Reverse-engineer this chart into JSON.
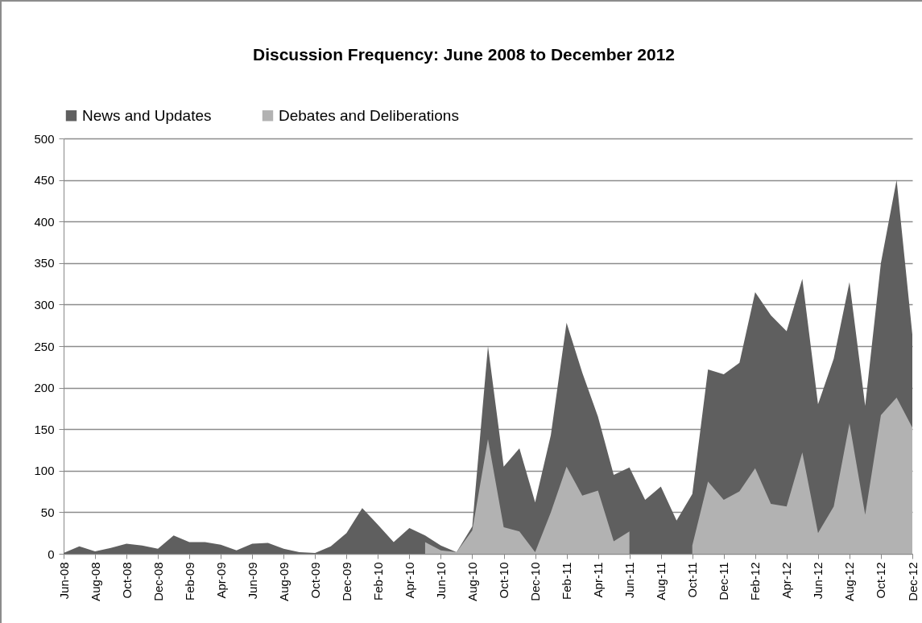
{
  "chart_data": {
    "type": "area",
    "title": "Discussion Frequency: June 2008 to December 2012",
    "categories": [
      "Jun-08",
      null,
      "Aug-08",
      null,
      "Oct-08",
      null,
      "Dec-08",
      null,
      "Feb-09",
      null,
      "Apr-09",
      null,
      "Jun-09",
      null,
      "Aug-09",
      null,
      "Oct-09",
      null,
      "Dec-09",
      null,
      "Feb-10",
      null,
      "Apr-10",
      null,
      "Jun-10",
      null,
      "Aug-10",
      null,
      "Oct-10",
      null,
      "Dec-10",
      null,
      "Feb-11",
      null,
      "Apr-11",
      null,
      "Jun-11",
      null,
      "Aug-11",
      null,
      "Oct-11",
      null,
      "Dec-11",
      null,
      "Feb-12",
      null,
      "Apr-12",
      null,
      "Jun-12",
      null,
      "Aug-12",
      null,
      "Oct-12",
      null,
      "Dec-12"
    ],
    "series": [
      {
        "name": "News and Updates",
        "color": "#5f5f5f",
        "values": [
          1,
          9,
          3,
          7,
          12,
          10,
          6,
          22,
          14,
          14,
          11,
          4,
          12,
          13,
          6,
          2,
          1,
          9,
          25,
          55,
          35,
          14,
          31,
          22,
          10,
          2,
          33,
          250,
          105,
          127,
          62,
          143,
          278,
          218,
          165,
          95,
          104,
          65,
          81,
          40,
          72,
          222,
          216,
          230,
          315,
          287,
          268,
          331,
          180,
          235,
          327,
          178,
          350,
          450,
          264
        ]
      },
      {
        "name": "Debates and Deliberations",
        "color": "#b2b2b2",
        "values": [
          null,
          null,
          null,
          null,
          null,
          null,
          null,
          null,
          null,
          null,
          null,
          null,
          null,
          null,
          null,
          null,
          null,
          null,
          null,
          null,
          null,
          null,
          null,
          14,
          4,
          2,
          28,
          138,
          32,
          27,
          2,
          50,
          105,
          70,
          76,
          15,
          27,
          null,
          null,
          null,
          10,
          87,
          65,
          75,
          103,
          60,
          57,
          122,
          25,
          57,
          157,
          47,
          167,
          188,
          152
        ]
      }
    ],
    "ylim": [
      0,
      500
    ],
    "yticks": [
      0,
      50,
      100,
      150,
      200,
      250,
      300,
      350,
      400,
      450,
      500
    ],
    "grid": "y",
    "legend": "top"
  }
}
